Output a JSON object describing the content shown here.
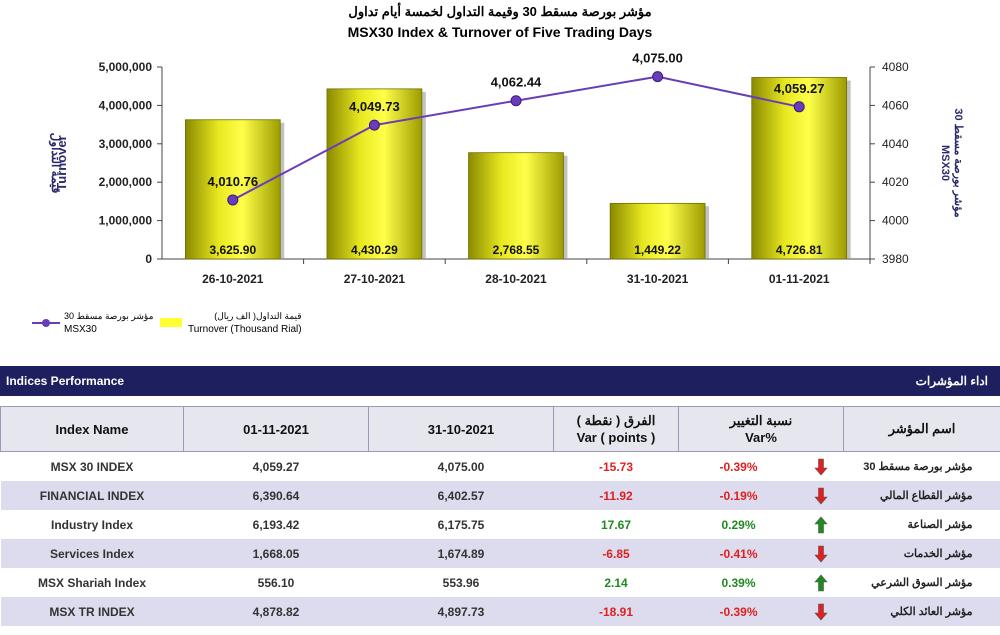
{
  "header": {
    "title_ar": "مؤشر بورصة مسقط 30 وقيمة التداول لخمسة أيام تداول",
    "title_en": "MSX30 Index & Turnover of Five Trading Days"
  },
  "legend": {
    "line_ar": "مؤشر بورصة مسقط 30",
    "line_en": "MSX30",
    "bar_ar": "قيمة التداول( الف ريال)",
    "bar_en": "Turnover (Thousand Rial)"
  },
  "chart_data": {
    "type": "bar",
    "categories": [
      "26-10-2021",
      "27-10-2021",
      "28-10-2021",
      "31-10-2021",
      "01-11-2021"
    ],
    "series": [
      {
        "type": "bar",
        "axis": "left",
        "values": [
          3625.9,
          4430.29,
          2768.55,
          1449.22,
          4726.81
        ],
        "labels": [
          "3,625.90",
          "4,430.29",
          "2,768.55",
          "1,449.22",
          "4,726.81"
        ],
        "color": "#ffff33"
      },
      {
        "type": "line",
        "axis": "right",
        "values": [
          4010.76,
          4049.73,
          4062.44,
          4075.0,
          4059.27
        ],
        "labels": [
          "4,010.76",
          "4,049.73",
          "4,062.44",
          "4,075.00",
          "4,059.27"
        ],
        "color": "#6a3db8"
      }
    ],
    "ylabel_ar": "قيمة التداول",
    "ylabel": "Turnover",
    "y2label_ar": "مؤشر بورصة مسقط 30",
    "y2label": "MSX30",
    "ylim": [
      0,
      5000000
    ],
    "yticks": [
      "0",
      "1,000,000",
      "2,000,000",
      "3,000,000",
      "4,000,000",
      "5,000,000"
    ],
    "y2lim": [
      3980,
      4080
    ],
    "y2ticks": [
      "3980",
      "4000",
      "4020",
      "4040",
      "4060",
      "4080"
    ],
    "grid": false
  },
  "section": {
    "title_en": "Indices Performance",
    "title_ar": "اداء المؤشرات"
  },
  "table": {
    "headers": {
      "name": "Index Name",
      "d1": "01-11-2021",
      "d2": "31-10-2021",
      "var_ar": "الفرق ( نقطة )",
      "var_en": "Var ( points )",
      "pct_ar": "نسبة التغيير",
      "pct_en": "Var%",
      "name_ar": "اسم المؤشر"
    },
    "rows": [
      {
        "name": "MSX 30 INDEX",
        "d1": "4,059.27",
        "d2": "4,075.00",
        "var": "-15.73",
        "pct": "-0.39%",
        "dir": "down",
        "name_ar": "مؤشر بورصة مسقط 30"
      },
      {
        "name": "FINANCIAL INDEX",
        "d1": "6,390.64",
        "d2": "6,402.57",
        "var": "-11.92",
        "pct": "-0.19%",
        "dir": "down",
        "name_ar": "مؤشر القطاع المالي"
      },
      {
        "name": "Industry Index",
        "d1": "6,193.42",
        "d2": "6,175.75",
        "var": "17.67",
        "pct": "0.29%",
        "dir": "up",
        "name_ar": "مؤشر الصناعة"
      },
      {
        "name": "Services Index",
        "d1": "1,668.05",
        "d2": "1,674.89",
        "var": "-6.85",
        "pct": "-0.41%",
        "dir": "down",
        "name_ar": "مؤشر الخدمات"
      },
      {
        "name": "MSX Shariah Index",
        "d1": "556.10",
        "d2": "553.96",
        "var": "2.14",
        "pct": "0.39%",
        "dir": "up",
        "name_ar": "مؤشر السوق الشرعي"
      },
      {
        "name": "MSX TR INDEX",
        "d1": "4,878.82",
        "d2": "4,897.73",
        "var": "-18.91",
        "pct": "-0.39%",
        "dir": "down",
        "name_ar": "مؤشر العائد الكلي"
      }
    ]
  },
  "colors": {
    "navy": "#1d1f5e",
    "up": "#1f8a1f",
    "down": "#e02020"
  }
}
